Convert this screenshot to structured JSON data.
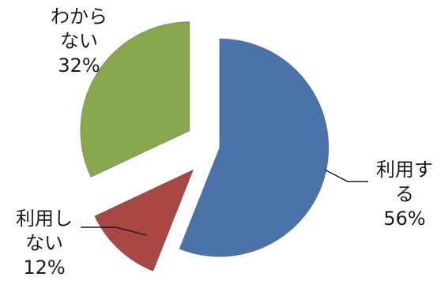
{
  "chart_data": {
    "type": "pie",
    "categories": [
      "利用する",
      "利用しない",
      "わからない"
    ],
    "values": [
      56,
      12,
      32
    ],
    "colors": [
      "#4A73AA",
      "#A94745",
      "#88A84E"
    ],
    "labels": [
      {
        "lines": [
          "利用す",
          "る"
        ],
        "value_text": "56%"
      },
      {
        "lines": [
          "利用し",
          "ない"
        ],
        "value_text": "12%"
      },
      {
        "lines": [
          "わから",
          "ない"
        ],
        "value_text": "32%"
      }
    ],
    "exploded": true,
    "legend": "none"
  }
}
